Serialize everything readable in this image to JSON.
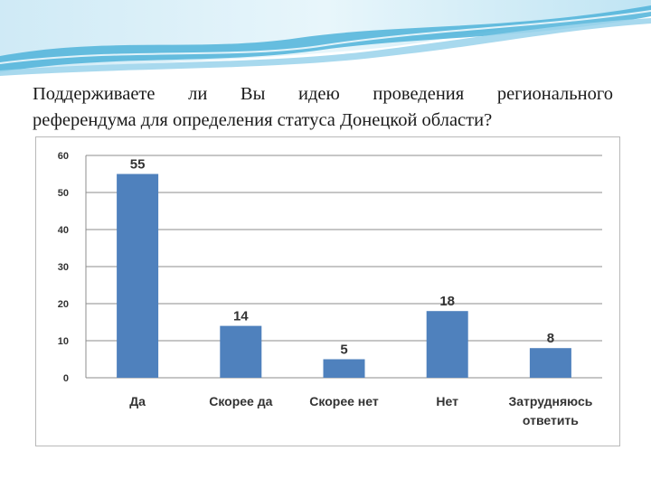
{
  "question": {
    "line1": "Поддерживаете ли Вы идею проведения регионального",
    "line2": "референдума для определения статуса Донецкой области?"
  },
  "colors": {
    "bar": "#4f81bd",
    "grid": "#8c8c8c",
    "banner_light": "#dff1f9",
    "banner_mid": "#a8d8ee",
    "banner_dark": "#4fb3d9"
  },
  "chart_data": {
    "type": "bar",
    "categories": [
      [
        "Да"
      ],
      [
        "Скорее да"
      ],
      [
        "Скорее нет"
      ],
      [
        "Нет"
      ],
      [
        "Затрудняюсь",
        "ответить"
      ]
    ],
    "values": [
      55,
      14,
      5,
      18,
      8
    ],
    "value_labels": [
      "55",
      "14",
      "5",
      "18",
      "8"
    ],
    "yticks": [
      "0",
      "10",
      "20",
      "30",
      "40",
      "50",
      "60"
    ],
    "ylim": [
      0,
      60
    ],
    "grid": true,
    "legend": "none",
    "title": "",
    "xlabel": "",
    "ylabel": ""
  }
}
